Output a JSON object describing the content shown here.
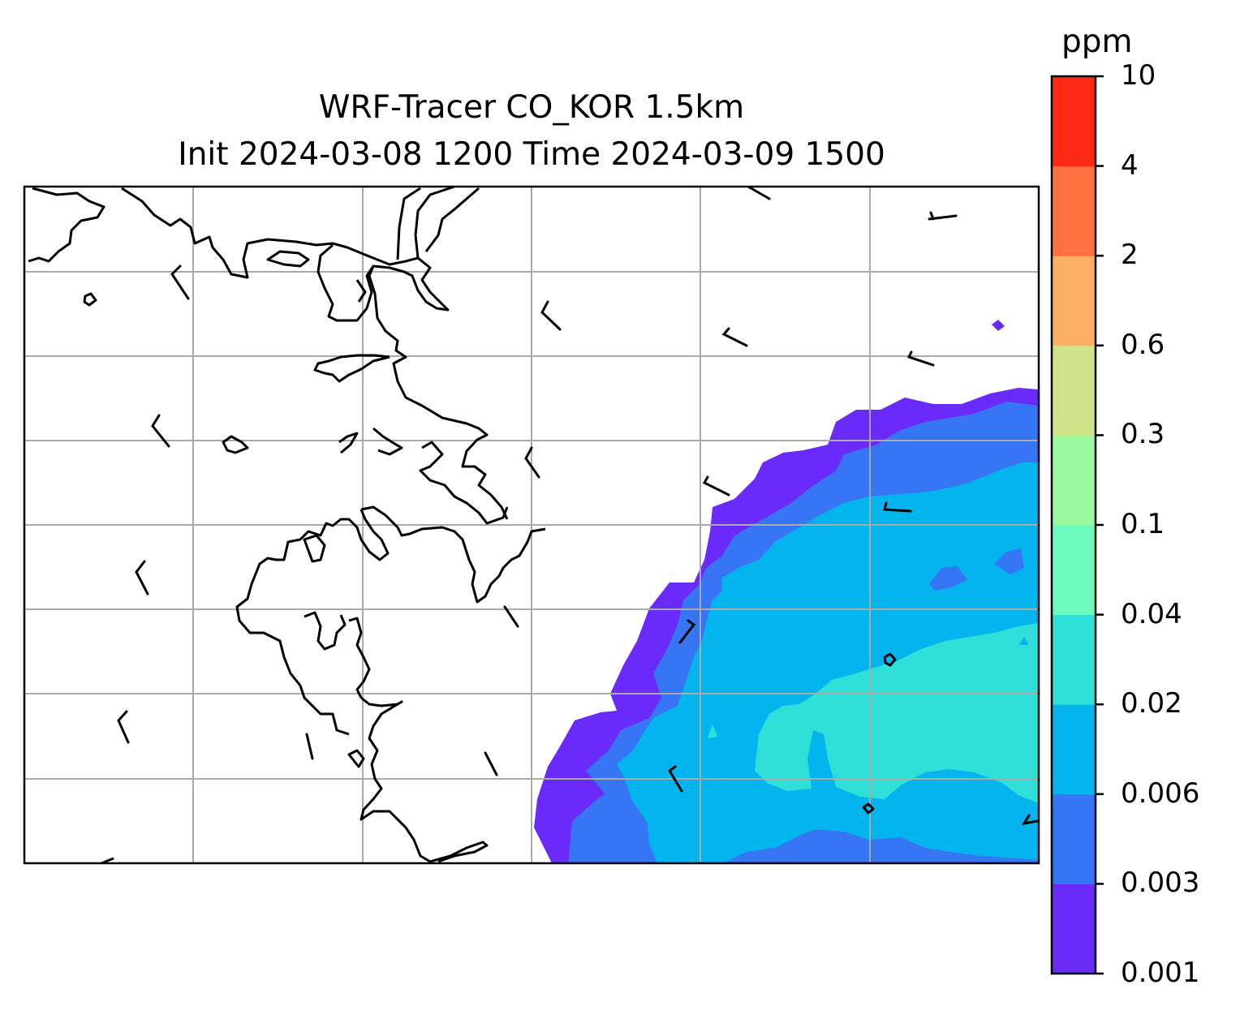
{
  "title": {
    "line1": "WRF-Tracer CO_KOR 1.5km",
    "line2": "Init 2024-03-08 1200 Time 2024-03-09 1500"
  },
  "colorbar": {
    "unit": "ppm",
    "levels": [
      "0.001",
      "0.003",
      "0.006",
      "0.02",
      "0.04",
      "0.1",
      "0.3",
      "0.6",
      "2",
      "4",
      "10"
    ],
    "colors": [
      "#6a2af9",
      "#3676f5",
      "#04b5ed",
      "#30e0d8",
      "#6cfdbe",
      "#9afa9e",
      "#cfe38a",
      "#fdb063",
      "#ff7140",
      "#ff2916"
    ]
  },
  "map": {
    "gridlines": true,
    "coastline_color": "#000000",
    "grid_color": "#aaaaaa"
  }
}
